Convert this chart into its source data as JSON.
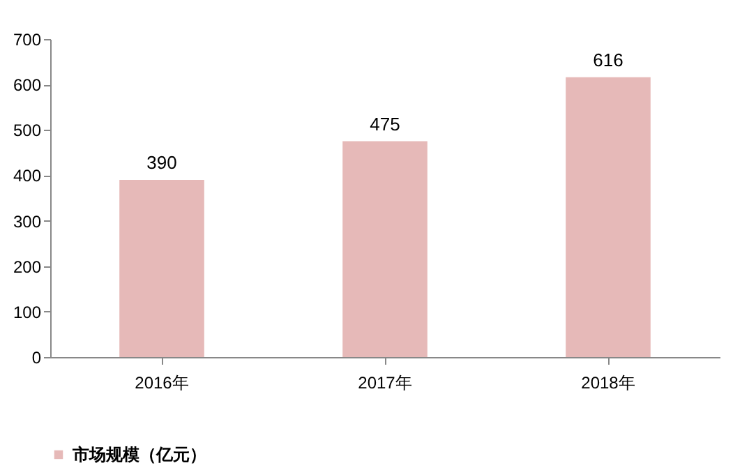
{
  "chart_data": {
    "type": "bar",
    "categories": [
      "2016年",
      "2017年",
      "2018年"
    ],
    "series": [
      {
        "name": "市场规模（亿元）",
        "color": "#e6b9b8",
        "values": [
          390,
          475,
          616
        ]
      }
    ],
    "ylim": [
      0,
      700
    ],
    "yticks": [
      0,
      100,
      200,
      300,
      400,
      500,
      600,
      700
    ],
    "data_labels": true,
    "grid": false,
    "legend": "bottom"
  }
}
